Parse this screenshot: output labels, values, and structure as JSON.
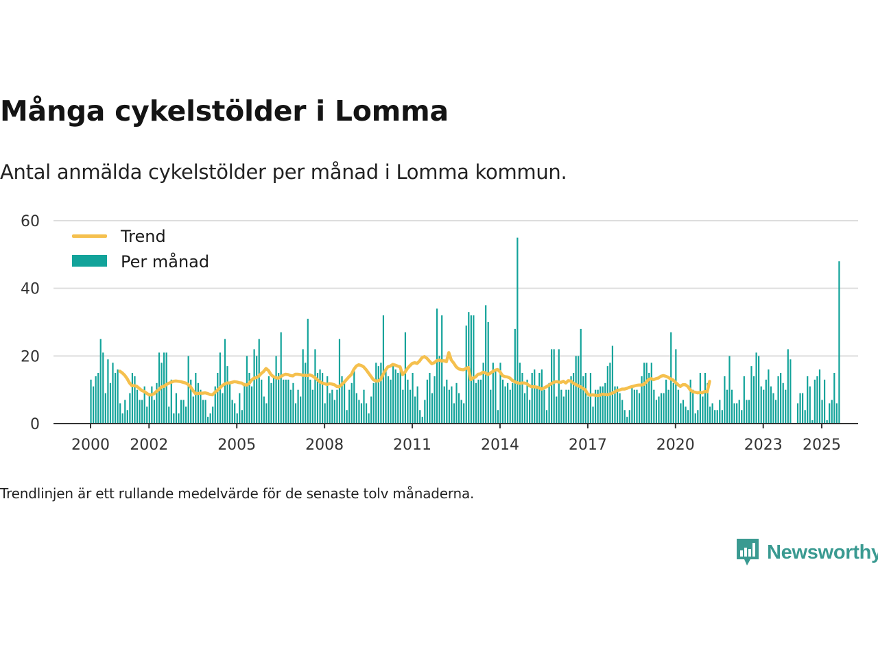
{
  "header": {
    "title": "Många cykelstölder i Lomma",
    "subtitle": "Antal anmälda cykelstölder per månad i Lomma kommun."
  },
  "footer": {
    "note": "Trendlinjen är ett rullande medelvärde för de senaste tolv månaderna.",
    "brand": "Newsworthy"
  },
  "colors": {
    "bars": "#12a39a",
    "trend": "#f5c04e",
    "grid": "#dddddd",
    "axis": "#333333",
    "brand": "#3a9a91"
  },
  "icons": {
    "brand_logo": "chat-bubble-bar-chart-icon"
  },
  "chart_data": {
    "type": "bar",
    "x_start": "2000-01",
    "x_end": "2025-06",
    "x_ticks": [
      "2000",
      "2002",
      "2005",
      "2008",
      "2011",
      "2014",
      "2017",
      "2020",
      "2023",
      "2025"
    ],
    "y_ticks": [
      "0",
      "20",
      "40",
      "60"
    ],
    "ylim": [
      0,
      60
    ],
    "grid": true,
    "legend_position": "top-left",
    "series": [
      {
        "name": "Per månad",
        "kind": "bar",
        "values": [
          13,
          11,
          14,
          15,
          25,
          21,
          9,
          19,
          12,
          18,
          15,
          16,
          6,
          3,
          7,
          4,
          9,
          15,
          14,
          10,
          7,
          7,
          11,
          5,
          9,
          11,
          7,
          12,
          21,
          18,
          21,
          21,
          5,
          13,
          3,
          9,
          3,
          7,
          7,
          5,
          20,
          13,
          8,
          15,
          12,
          10,
          7,
          7,
          2,
          3,
          5,
          11,
          15,
          21,
          9,
          25,
          17,
          12,
          7,
          6,
          3,
          9,
          4,
          12,
          20,
          15,
          11,
          22,
          20,
          25,
          13,
          8,
          6,
          14,
          12,
          14,
          20,
          15,
          27,
          13,
          13,
          13,
          10,
          12,
          6,
          10,
          8,
          22,
          18,
          31,
          13,
          10,
          22,
          15,
          16,
          15,
          6,
          14,
          9,
          10,
          7,
          10,
          25,
          14,
          12,
          4,
          10,
          12,
          16,
          9,
          7,
          6,
          10,
          6,
          3,
          8,
          12,
          18,
          17,
          18,
          32,
          16,
          14,
          13,
          17,
          16,
          15,
          16,
          10,
          27,
          13,
          10,
          15,
          8,
          11,
          4,
          2,
          7,
          13,
          15,
          9,
          14,
          34,
          20,
          32,
          11,
          13,
          10,
          11,
          6,
          12,
          9,
          7,
          6,
          29,
          33,
          32,
          32,
          12,
          13,
          13,
          18,
          35,
          30,
          10,
          18,
          16,
          4,
          18,
          13,
          11,
          12,
          10,
          12,
          28,
          55,
          18,
          15,
          9,
          13,
          7,
          15,
          16,
          11,
          15,
          16,
          10,
          4,
          12,
          22,
          22,
          8,
          22,
          10,
          8,
          10,
          10,
          14,
          15,
          20,
          20,
          28,
          14,
          15,
          8,
          15,
          5,
          10,
          10,
          11,
          11,
          12,
          17,
          18,
          23,
          11,
          11,
          9,
          7,
          4,
          2,
          4,
          11,
          10,
          10,
          9,
          14,
          18,
          18,
          15,
          18,
          10,
          7,
          8,
          9,
          9,
          13,
          10,
          27,
          12,
          22,
          10,
          6,
          7,
          5,
          4,
          13,
          10,
          3,
          4,
          15,
          8,
          15,
          12,
          5,
          6,
          4,
          4,
          7,
          4,
          14,
          10,
          20,
          10,
          6,
          6,
          7,
          4,
          14,
          7,
          7,
          17,
          14,
          21,
          20,
          11,
          10,
          13,
          16,
          11,
          9,
          7,
          14,
          15,
          12,
          10,
          22,
          19,
          0,
          0,
          6,
          9,
          9,
          4,
          14,
          11,
          1,
          13,
          14,
          16,
          7,
          13,
          1,
          6,
          7,
          15,
          6,
          48
        ]
      },
      {
        "name": "Trend",
        "kind": "line",
        "start": "2001-01",
        "values": [
          15.5,
          15.0,
          14.3,
          13.3,
          12.0,
          11.2,
          11.2,
          11.0,
          10.4,
          9.8,
          9.5,
          9.0,
          8.5,
          8.5,
          8.8,
          9.5,
          10.0,
          10.8,
          11.0,
          11.5,
          11.9,
          12.2,
          12.5,
          12.6,
          12.5,
          12.4,
          12.2,
          12.0,
          11.6,
          10.9,
          9.8,
          8.9,
          8.9,
          9.0,
          9.0,
          9.1,
          8.9,
          8.6,
          8.5,
          9.2,
          9.8,
          10.5,
          11.2,
          11.7,
          12.0,
          12.0,
          12.2,
          12.4,
          12.3,
          12.1,
          12.0,
          11.5,
          11.4,
          11.8,
          12.8,
          13.4,
          13.6,
          14.0,
          14.8,
          15.4,
          16.3,
          15.7,
          14.5,
          13.9,
          13.6,
          13.4,
          13.9,
          14.3,
          14.6,
          14.5,
          14.2,
          14.1,
          14.6,
          14.6,
          14.5,
          14.3,
          14.3,
          14.2,
          14.4,
          14.1,
          13.6,
          13.0,
          12.4,
          12.0,
          11.8,
          11.6,
          11.8,
          11.7,
          11.5,
          11.0,
          10.9,
          11.5,
          12.2,
          13.0,
          13.8,
          14.5,
          16.0,
          17.0,
          17.4,
          17.2,
          16.8,
          16.0,
          15.0,
          14.0,
          13.0,
          12.6,
          12.6,
          13.0,
          14.5,
          15.8,
          16.8,
          17.0,
          17.5,
          17.3,
          17.0,
          16.8,
          14.5,
          15.2,
          16.3,
          17.1,
          17.8,
          18.0,
          17.8,
          18.5,
          19.5,
          19.8,
          19.3,
          18.5,
          17.7,
          18.0,
          18.6,
          18.8,
          18.5,
          18.6,
          18.3,
          21.0,
          18.8,
          17.9,
          16.8,
          16.2,
          16.0,
          15.9,
          16.3,
          16.6,
          13.0,
          13.5,
          13.8,
          14.6,
          14.7,
          15.2,
          15.0,
          14.5,
          14.9,
          15.4,
          15.8,
          16.0,
          15.3,
          14.2,
          13.9,
          13.8,
          13.5,
          12.8,
          12.4,
          12.1,
          11.9,
          12.0,
          12.0,
          11.8,
          11.2,
          10.9,
          10.9,
          10.8,
          10.6,
          10.2,
          10.5,
          10.9,
          11.3,
          11.8,
          12.2,
          12.4,
          12.3,
          12.2,
          12.5,
          12.0,
          12.7,
          12.6,
          12.0,
          11.6,
          11.2,
          10.9,
          10.4,
          10.0,
          8.7,
          8.4,
          8.5,
          8.4,
          8.3,
          8.4,
          8.7,
          8.6,
          8.5,
          8.7,
          9.0,
          9.3,
          9.8,
          9.9,
          10.2,
          10.2,
          10.4,
          10.7,
          10.9,
          11.1,
          11.3,
          11.4,
          11.4,
          11.6,
          12.3,
          13.1,
          13.3,
          13.0,
          13.3,
          13.5,
          14.0,
          14.2,
          14.0,
          13.7,
          13.2,
          12.9,
          12.2,
          11.5,
          11.0,
          11.5,
          11.5,
          11.0,
          10.0,
          9.4,
          9.3,
          9.1,
          9.2,
          9.1,
          9.5,
          9.4,
          12.5
        ]
      }
    ]
  }
}
